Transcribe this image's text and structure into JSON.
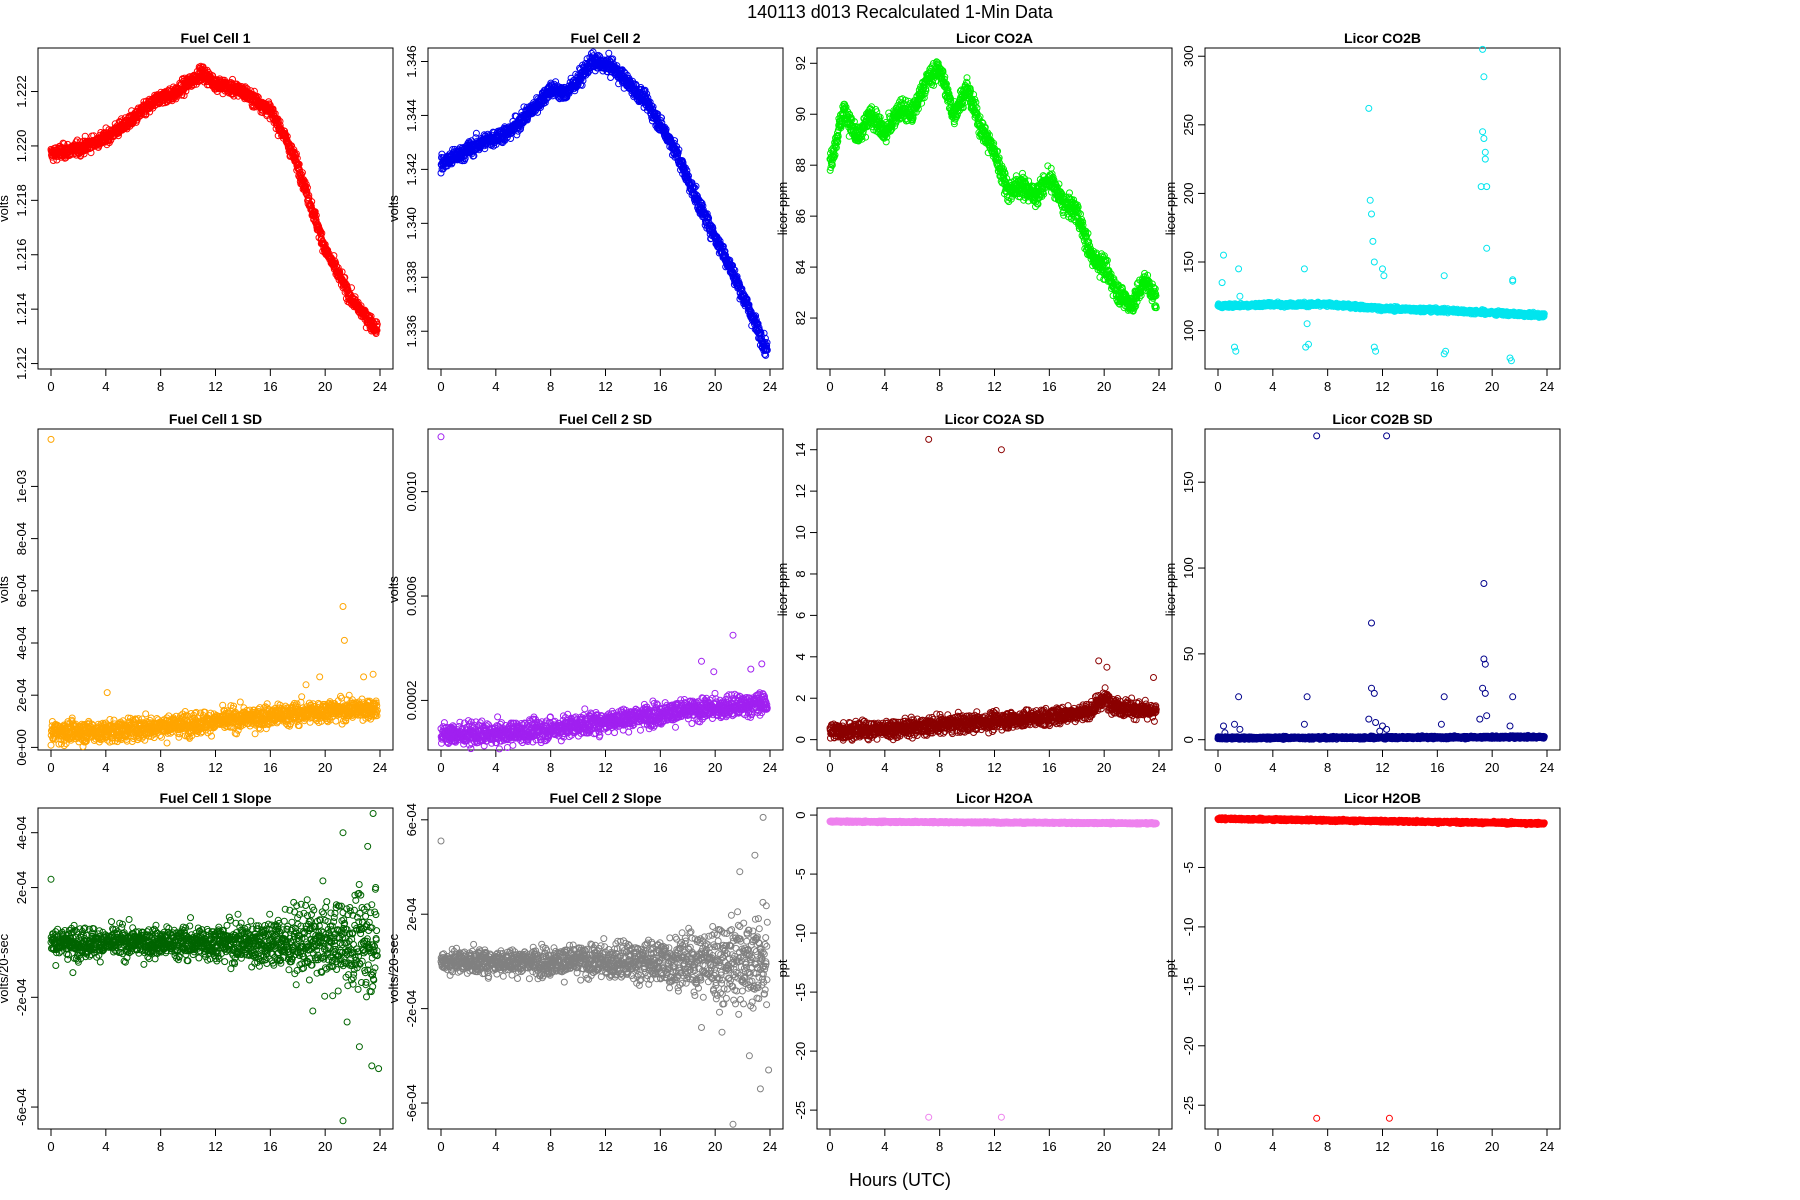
{
  "figure": {
    "title": "140113   d013   Recalculated 1-Min Data",
    "xlabel": "Hours (UTC)"
  },
  "chart_data": [
    {
      "id": "fc1",
      "type": "scatter",
      "title": "Fuel Cell 1",
      "ylabel": "volts",
      "color": "#ff0000",
      "xlim": [
        0,
        24
      ],
      "xticks": [
        0,
        4,
        8,
        12,
        16,
        20,
        24
      ],
      "ylim": [
        1.2118,
        1.2236
      ],
      "yticks": [
        1.212,
        1.214,
        1.216,
        1.218,
        1.22,
        1.222
      ],
      "ytick_labels": [
        "1.212",
        "1.214",
        "1.216",
        "1.218",
        "1.220",
        "1.222"
      ],
      "profile": [
        [
          0,
          1.2197
        ],
        [
          2,
          1.2199
        ],
        [
          4,
          1.2203
        ],
        [
          6,
          1.221
        ],
        [
          8,
          1.2218
        ],
        [
          9,
          1.2219
        ],
        [
          11,
          1.2227
        ],
        [
          12,
          1.2223
        ],
        [
          14,
          1.222
        ],
        [
          16,
          1.2213
        ],
        [
          17,
          1.2204
        ],
        [
          18,
          1.2193
        ],
        [
          20,
          1.2162
        ],
        [
          22,
          1.2143
        ],
        [
          23.7,
          1.2133
        ]
      ],
      "noise": 0.00022,
      "outliers": []
    },
    {
      "id": "fc2",
      "type": "scatter",
      "title": "Fuel Cell 2",
      "ylabel": "volts",
      "color": "#0000ee",
      "xlim": [
        0,
        24
      ],
      "xticks": [
        0,
        4,
        8,
        12,
        16,
        20,
        24
      ],
      "ylim": [
        1.3346,
        1.3465
      ],
      "yticks": [
        1.336,
        1.338,
        1.34,
        1.342,
        1.344,
        1.346
      ],
      "ytick_labels": [
        "1.336",
        "1.338",
        "1.340",
        "1.342",
        "1.344",
        "1.346"
      ],
      "profile": [
        [
          0,
          1.3422
        ],
        [
          3,
          1.343
        ],
        [
          5,
          1.3434
        ],
        [
          7,
          1.3444
        ],
        [
          8,
          1.345
        ],
        [
          9,
          1.3448
        ],
        [
          10,
          1.3453
        ],
        [
          11,
          1.346
        ],
        [
          12.5,
          1.3458
        ],
        [
          15,
          1.3445
        ],
        [
          17,
          1.3428
        ],
        [
          19,
          1.3405
        ],
        [
          21,
          1.3385
        ],
        [
          23.7,
          1.3354
        ]
      ],
      "noise": 0.00025,
      "outliers": []
    },
    {
      "id": "co2a",
      "type": "scatter",
      "title": "Licor CO2A",
      "ylabel": "licor-ppm",
      "color": "#00ee00",
      "xlim": [
        0,
        24
      ],
      "xticks": [
        0,
        4,
        8,
        12,
        16,
        20,
        24
      ],
      "ylim": [
        80.0,
        92.6
      ],
      "yticks": [
        82,
        84,
        86,
        88,
        90,
        92
      ],
      "ytick_labels": [
        "82",
        "84",
        "86",
        "88",
        "90",
        "92"
      ],
      "profile": [
        [
          0,
          88.0
        ],
        [
          1,
          90.2
        ],
        [
          2,
          89.0
        ],
        [
          3,
          90.0
        ],
        [
          4,
          89.2
        ],
        [
          5,
          90.2
        ],
        [
          6,
          90.0
        ],
        [
          7,
          91.3
        ],
        [
          8,
          91.8
        ],
        [
          9,
          90.0
        ],
        [
          10,
          91.0
        ],
        [
          11,
          89.5
        ],
        [
          12,
          88.5
        ],
        [
          13,
          87.0
        ],
        [
          14,
          87.2
        ],
        [
          15,
          86.8
        ],
        [
          16,
          87.5
        ],
        [
          17,
          86.5
        ],
        [
          18,
          86.2
        ],
        [
          19,
          84.5
        ],
        [
          20,
          84.0
        ],
        [
          21,
          83.0
        ],
        [
          22,
          82.5
        ],
        [
          23,
          83.5
        ],
        [
          23.7,
          82.8
        ]
      ],
      "noise": 0.35,
      "outliers": []
    },
    {
      "id": "co2b",
      "type": "scatter",
      "title": "Licor CO2B",
      "ylabel": "licor-ppm",
      "color": "#00e5ee",
      "xlim": [
        0,
        24
      ],
      "xticks": [
        0,
        4,
        8,
        12,
        16,
        20,
        24
      ],
      "ylim": [
        72,
        306
      ],
      "yticks": [
        100,
        150,
        200,
        250,
        300
      ],
      "ytick_labels": [
        "100",
        "150",
        "200",
        "250",
        "300"
      ],
      "profile": [
        [
          0,
          118
        ],
        [
          4,
          119
        ],
        [
          8,
          119
        ],
        [
          11,
          117
        ],
        [
          12,
          116
        ],
        [
          16,
          115
        ],
        [
          20,
          113
        ],
        [
          23.7,
          111
        ]
      ],
      "noise": 1.2,
      "outliers": [
        [
          0.3,
          135
        ],
        [
          0.4,
          155
        ],
        [
          1.2,
          88
        ],
        [
          1.3,
          85
        ],
        [
          1.5,
          145
        ],
        [
          1.6,
          125
        ],
        [
          6.3,
          145
        ],
        [
          6.5,
          105
        ],
        [
          6.4,
          88
        ],
        [
          6.6,
          90
        ],
        [
          11.0,
          262
        ],
        [
          11.1,
          195
        ],
        [
          11.2,
          185
        ],
        [
          11.3,
          165
        ],
        [
          11.4,
          150
        ],
        [
          11.4,
          88
        ],
        [
          11.5,
          85
        ],
        [
          12.0,
          145
        ],
        [
          12.1,
          140
        ],
        [
          16.5,
          140
        ],
        [
          16.6,
          85
        ],
        [
          16.5,
          83
        ],
        [
          19.2,
          205
        ],
        [
          19.3,
          245
        ],
        [
          19.3,
          305
        ],
        [
          19.4,
          285
        ],
        [
          19.4,
          240
        ],
        [
          19.5,
          230
        ],
        [
          19.5,
          225
        ],
        [
          19.6,
          160
        ],
        [
          19.6,
          205
        ],
        [
          21.5,
          137
        ],
        [
          21.5,
          136
        ],
        [
          21.3,
          80
        ],
        [
          21.4,
          78
        ]
      ]
    },
    {
      "id": "fc1sd",
      "type": "scatter",
      "title": "Fuel Cell 1 SD",
      "ylabel": "volts",
      "color": "#ffa500",
      "xlim": [
        0,
        24
      ],
      "xticks": [
        0,
        4,
        8,
        12,
        16,
        20,
        24
      ],
      "ylim": [
        -1e-05,
        0.00122
      ],
      "yticks": [
        0,
        0.0002,
        0.0004,
        0.0006,
        0.0008,
        0.001
      ],
      "ytick_labels": [
        "0e+00",
        "2e-04",
        "4e-04",
        "6e-04",
        "8e-04",
        "1e-03"
      ],
      "profile": [
        [
          0,
          6e-05
        ],
        [
          4,
          6e-05
        ],
        [
          8,
          8e-05
        ],
        [
          12,
          0.0001
        ],
        [
          16,
          0.00012
        ],
        [
          20,
          0.00014
        ],
        [
          23.7,
          0.00015
        ]
      ],
      "noise": 3.5e-05,
      "outliers": [
        [
          0,
          0.00118
        ],
        [
          4.1,
          0.00021
        ],
        [
          21.3,
          0.00054
        ],
        [
          21.4,
          0.00041
        ],
        [
          23.5,
          0.00028
        ],
        [
          22.8,
          0.00027
        ],
        [
          19.6,
          0.00027
        ],
        [
          18.6,
          0.00024
        ]
      ]
    },
    {
      "id": "fc2sd",
      "type": "scatter",
      "title": "Fuel Cell 2 SD",
      "ylabel": "volts",
      "color": "#a020f0",
      "xlim": [
        0,
        24
      ],
      "xticks": [
        0,
        4,
        8,
        12,
        16,
        20,
        24
      ],
      "ylim": [
        1e-05,
        0.00124
      ],
      "yticks": [
        0.0002,
        0.0006,
        0.001
      ],
      "ytick_labels": [
        "0.0002",
        "0.0006",
        "0.0010"
      ],
      "profile": [
        [
          0,
          7e-05
        ],
        [
          4,
          7e-05
        ],
        [
          8,
          9e-05
        ],
        [
          12,
          0.00012
        ],
        [
          16,
          0.00015
        ],
        [
          20,
          0.00017
        ],
        [
          23.7,
          0.00019
        ]
      ],
      "noise": 3.5e-05,
      "outliers": [
        [
          0,
          0.00121
        ],
        [
          21.3,
          0.00045
        ],
        [
          19.0,
          0.00035
        ],
        [
          23.4,
          0.00034
        ],
        [
          22.6,
          0.00032
        ],
        [
          19.9,
          0.00031
        ]
      ]
    },
    {
      "id": "co2asd",
      "type": "scatter",
      "title": "Licor CO2A SD",
      "ylabel": "licor-ppm",
      "color": "#8b0000",
      "xlim": [
        0,
        24
      ],
      "xticks": [
        0,
        4,
        8,
        12,
        16,
        20,
        24
      ],
      "ylim": [
        -0.5,
        15.0
      ],
      "yticks": [
        0,
        2,
        4,
        6,
        8,
        10,
        12,
        14
      ],
      "ytick_labels": [
        "0",
        "2",
        "4",
        "6",
        "8",
        "10",
        "12",
        "14"
      ],
      "profile": [
        [
          0,
          0.4
        ],
        [
          4,
          0.5
        ],
        [
          8,
          0.7
        ],
        [
          12,
          0.9
        ],
        [
          16,
          1.1
        ],
        [
          19,
          1.4
        ],
        [
          20,
          2.0
        ],
        [
          21,
          1.6
        ],
        [
          23.7,
          1.3
        ]
      ],
      "noise": 0.35,
      "outliers": [
        [
          7.2,
          14.5
        ],
        [
          12.5,
          14.0
        ],
        [
          19.6,
          3.8
        ],
        [
          20.2,
          3.5
        ],
        [
          23.6,
          3.0
        ]
      ]
    },
    {
      "id": "co2bsd",
      "type": "scatter",
      "title": "Licor CO2B SD",
      "ylabel": "licor-ppm",
      "color": "#00008b",
      "xlim": [
        0,
        24
      ],
      "xticks": [
        0,
        4,
        8,
        12,
        16,
        20,
        24
      ],
      "ylim": [
        -6,
        181
      ],
      "yticks": [
        0,
        50,
        100,
        150
      ],
      "ytick_labels": [
        "0",
        "50",
        "100",
        "150"
      ],
      "profile": [
        [
          0,
          1.0
        ],
        [
          12,
          1.2
        ],
        [
          23.7,
          1.6
        ]
      ],
      "noise": 0.6,
      "outliers": [
        [
          7.2,
          177
        ],
        [
          12.3,
          177
        ],
        [
          11.2,
          68
        ],
        [
          19.4,
          91
        ],
        [
          19.4,
          47
        ],
        [
          19.5,
          44
        ],
        [
          11.2,
          30
        ],
        [
          11.4,
          27
        ],
        [
          19.3,
          30
        ],
        [
          19.5,
          27
        ],
        [
          1.5,
          25
        ],
        [
          6.5,
          25
        ],
        [
          16.5,
          25
        ],
        [
          21.5,
          25
        ],
        [
          1.2,
          9
        ],
        [
          1.6,
          6
        ],
        [
          6.3,
          9
        ],
        [
          11.0,
          12
        ],
        [
          11.5,
          10
        ],
        [
          12.0,
          8
        ],
        [
          12.3,
          6
        ],
        [
          16.3,
          9
        ],
        [
          19.1,
          12
        ],
        [
          19.6,
          14
        ],
        [
          21.3,
          8
        ],
        [
          11.8,
          5
        ],
        [
          0.5,
          4
        ],
        [
          0.4,
          8
        ]
      ]
    },
    {
      "id": "fc1slope",
      "type": "scatter",
      "title": "Fuel Cell 1 Slope",
      "ylabel": "volts/20-sec",
      "color": "#006400",
      "xlim": [
        0,
        24
      ],
      "xticks": [
        0,
        4,
        8,
        12,
        16,
        20,
        24
      ],
      "ylim": [
        -0.00068,
        0.00049
      ],
      "yticks": [
        -0.0006,
        -0.0002,
        0.0002,
        0.0004
      ],
      "ytick_labels": [
        "-6e-04",
        "-2e-04",
        "2e-04",
        "4e-04"
      ],
      "profile": [
        [
          0,
          0
        ],
        [
          24,
          0
        ]
      ],
      "noise_profile": [
        [
          0,
          4.5e-05
        ],
        [
          8,
          4.5e-05
        ],
        [
          12,
          5.5e-05
        ],
        [
          16,
          8e-05
        ],
        [
          20,
          0.00012
        ],
        [
          23.7,
          0.00015
        ]
      ],
      "noise": 5e-05,
      "outliers": [
        [
          0,
          0.00023
        ],
        [
          21.3,
          -0.00065
        ],
        [
          21.3,
          0.0004
        ],
        [
          23.5,
          0.00047
        ],
        [
          23.4,
          -0.00045
        ],
        [
          23.9,
          -0.00046
        ],
        [
          22.5,
          -0.00038
        ],
        [
          23.1,
          0.00035
        ],
        [
          21.6,
          -0.00029
        ],
        [
          19.1,
          -0.00025
        ],
        [
          1.6,
          -0.00011
        ]
      ]
    },
    {
      "id": "fc2slope",
      "type": "scatter",
      "title": "Fuel Cell 2 Slope",
      "ylabel": "volts/20-sec",
      "color": "#808080",
      "xlim": [
        0,
        24
      ],
      "xticks": [
        0,
        4,
        8,
        12,
        16,
        20,
        24
      ],
      "ylim": [
        -0.00071,
        0.00065
      ],
      "yticks": [
        -0.0006,
        -0.0002,
        0.0002,
        0.0006
      ],
      "ytick_labels": [
        "-6e-04",
        "-2e-04",
        "2e-04",
        "6e-04"
      ],
      "profile": [
        [
          0,
          0
        ],
        [
          24,
          0
        ]
      ],
      "noise_profile": [
        [
          0,
          4e-05
        ],
        [
          8,
          5e-05
        ],
        [
          12,
          6e-05
        ],
        [
          16,
          8e-05
        ],
        [
          19,
          0.00011
        ],
        [
          20,
          0.00014
        ],
        [
          23.7,
          0.00016
        ]
      ],
      "noise": 5e-05,
      "outliers": [
        [
          0,
          0.00051
        ],
        [
          23.5,
          0.00061
        ],
        [
          21.3,
          -0.00069
        ],
        [
          23.3,
          -0.00054
        ],
        [
          23.9,
          -0.00046
        ],
        [
          22.5,
          -0.0004
        ],
        [
          20.5,
          -0.0003
        ],
        [
          19.0,
          -0.00028
        ],
        [
          22.9,
          0.00045
        ],
        [
          21.8,
          0.00038
        ]
      ]
    },
    {
      "id": "h2oa",
      "type": "scatter",
      "title": "Licor H2OA",
      "ylabel": "ppt",
      "color": "#ee82ee",
      "xlim": [
        0,
        24
      ],
      "xticks": [
        0,
        4,
        8,
        12,
        16,
        20,
        24
      ],
      "ylim": [
        -26.6,
        0.6
      ],
      "yticks": [
        -25,
        -20,
        -15,
        -10,
        -5,
        0
      ],
      "ytick_labels": [
        "-25",
        "-20",
        "-15",
        "-10",
        "-5",
        "0"
      ],
      "profile": [
        [
          0,
          -0.55
        ],
        [
          23.7,
          -0.7
        ]
      ],
      "noise": 0.05,
      "outliers": [
        [
          7.2,
          -25.6
        ],
        [
          12.5,
          -25.6
        ]
      ]
    },
    {
      "id": "h2ob",
      "type": "scatter",
      "title": "Licor H2OB",
      "ylabel": "ppt",
      "color": "#ff0000",
      "xlim": [
        0,
        24
      ],
      "xticks": [
        0,
        4,
        8,
        12,
        16,
        20,
        24
      ],
      "ylim": [
        -27.0,
        0.0
      ],
      "yticks": [
        -25,
        -20,
        -15,
        -10,
        -5
      ],
      "ytick_labels": [
        "-25",
        "-20",
        "-15",
        "-10",
        "-5"
      ],
      "profile": [
        [
          0,
          -0.9
        ],
        [
          23.7,
          -1.3
        ]
      ],
      "noise": 0.07,
      "outliers": [
        [
          7.2,
          -26.1
        ],
        [
          12.5,
          -26.1
        ]
      ]
    }
  ]
}
